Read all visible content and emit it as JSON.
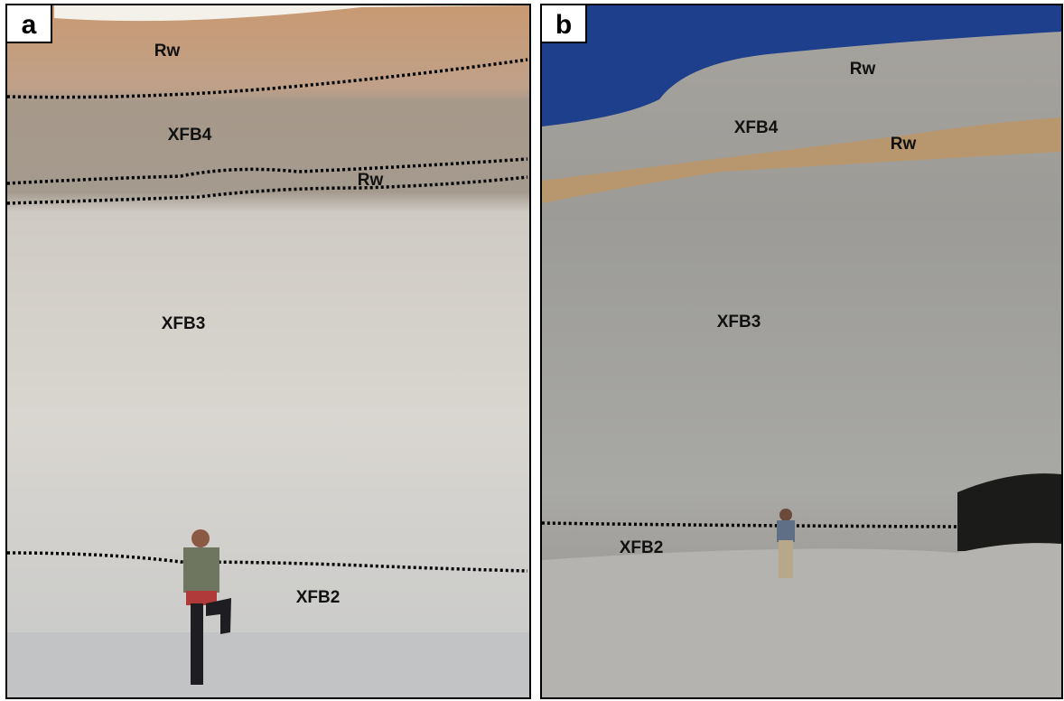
{
  "panels": [
    {
      "label": "a",
      "annotations": [
        "Rw",
        "XFB4",
        "Rw",
        "XFB3",
        "XFB2"
      ]
    },
    {
      "label": "b",
      "annotations": [
        "Rw",
        "XFB4",
        "Rw",
        "XFB3",
        "XFB2"
      ]
    }
  ]
}
